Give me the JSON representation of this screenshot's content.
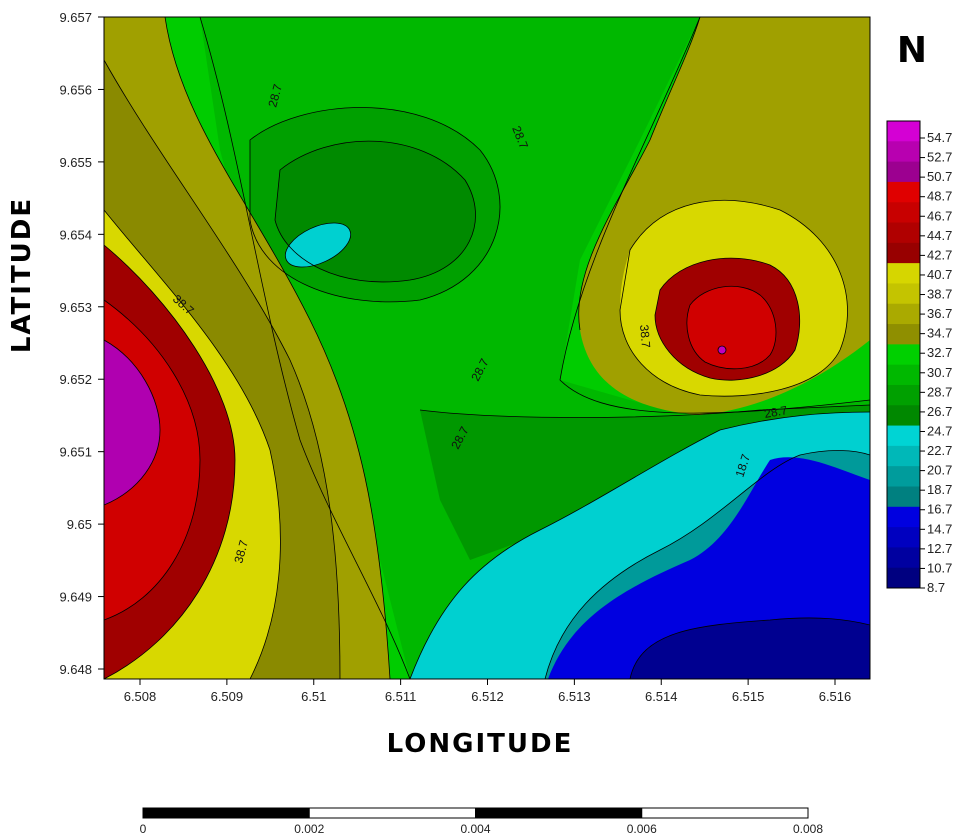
{
  "map": {
    "north_label": "N",
    "x_axis_title": "LONGITUDE",
    "y_axis_title": "LATITUDE",
    "x_ticks": [
      "6.508",
      "6.509",
      "6.51",
      "6.511",
      "6.512",
      "6.513",
      "6.514",
      "6.515",
      "6.516"
    ],
    "y_ticks": [
      "9.657",
      "9.656",
      "9.655",
      "9.654",
      "9.653",
      "9.652",
      "9.651",
      "9.65",
      "9.649",
      "9.648"
    ],
    "contour_labels": [
      {
        "text": "28.7"
      },
      {
        "text": "28.7"
      },
      {
        "text": "28.7"
      },
      {
        "text": "28.7"
      },
      {
        "text": "28.7"
      },
      {
        "text": "38.7"
      },
      {
        "text": "38.7"
      },
      {
        "text": "38.7"
      },
      {
        "text": "18.7"
      }
    ],
    "legend": {
      "levels": [
        "54.7",
        "52.7",
        "50.7",
        "48.7",
        "46.7",
        "44.7",
        "42.7",
        "40.7",
        "38.7",
        "36.7",
        "34.7",
        "32.7",
        "30.7",
        "28.7",
        "26.7",
        "24.7",
        "22.7",
        "20.7",
        "18.7",
        "16.7",
        "14.7",
        "12.7",
        "10.7",
        "8.7"
      ],
      "colors": [
        "#d400d4",
        "#b800b0",
        "#9c0090",
        "#e00000",
        "#c80000",
        "#b00000",
        "#980000",
        "#d6d600",
        "#c4c400",
        "#aaaa00",
        "#8f8f00",
        "#00d000",
        "#00b800",
        "#00a000",
        "#008800",
        "#00d4d4",
        "#00b8b8",
        "#009c9c",
        "#008080",
        "#0000e0",
        "#0000c0",
        "#0000a0",
        "#000080"
      ]
    },
    "scale_bar": {
      "labels": [
        "0",
        "0.002",
        "0.004",
        "0.006",
        "0.008"
      ]
    },
    "colors": {
      "magenta": "#c000c0",
      "red": "#d00000",
      "dark_red": "#a00000",
      "yellow": "#d8d800",
      "olive": "#a0a000",
      "dark_olive": "#8a8a00",
      "light_green": "#00cc00",
      "green": "#00aa00",
      "dark_green": "#008a00",
      "cyan": "#00d0d0",
      "teal": "#009a9a",
      "blue": "#0000e0",
      "navy": "#000090"
    }
  }
}
